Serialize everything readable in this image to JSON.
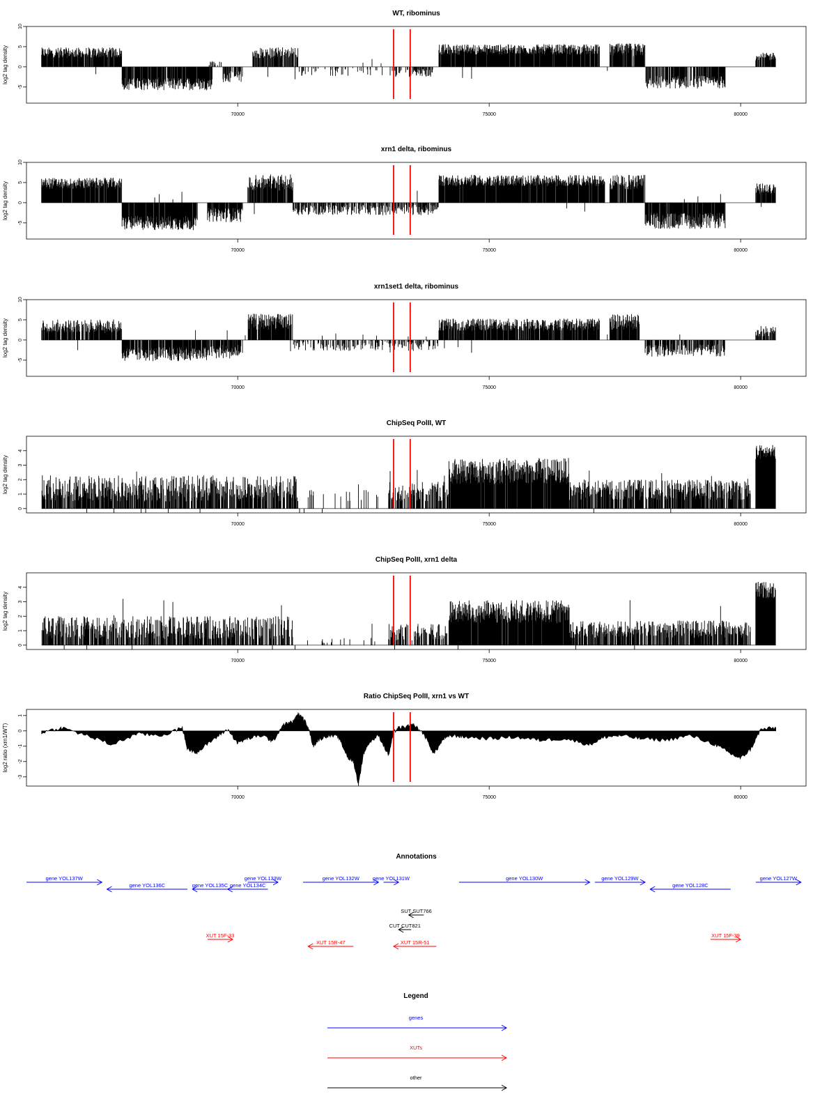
{
  "chart_data": [
    {
      "type": "bar",
      "title": "WT, ribominus",
      "ylabel": "log2 tag density",
      "xlim": [
        65800,
        81300
      ],
      "ylim": [
        -9,
        10
      ],
      "yticks": [
        10,
        5,
        0,
        -5
      ],
      "ytick_labels": [
        "10",
        "5",
        "0",
        "-5"
      ],
      "xticks": [
        70000,
        75000,
        80000
      ],
      "xtick_labels": [
        "70000",
        "75000",
        "80000"
      ],
      "marker_lines": [
        73100,
        73430
      ],
      "marker_color": "#ff0000",
      "segments": [
        {
          "x": [
            66100,
            67700
          ],
          "level": 3.5,
          "var": 1.3,
          "density": 0.9
        },
        {
          "x": [
            67700,
            69500
          ],
          "level": -4.2,
          "var": 1.6,
          "density": 0.9
        },
        {
          "x": [
            69400,
            69700
          ],
          "level": 1.0,
          "var": 0.8,
          "density": 0.3
        },
        {
          "x": [
            69700,
            70100
          ],
          "level": -2.5,
          "var": 1.4,
          "density": 0.7
        },
        {
          "x": [
            70300,
            71200
          ],
          "level": 3.5,
          "var": 1.4,
          "density": 0.7
        },
        {
          "x": [
            71200,
            73100
          ],
          "level": -1.3,
          "var": 1.0,
          "density": 0.15
        },
        {
          "x": [
            73100,
            73900
          ],
          "level": -1.5,
          "var": 1.0,
          "density": 0.4
        },
        {
          "x": [
            74000,
            77200
          ],
          "level": 4.3,
          "var": 1.3,
          "density": 0.95
        },
        {
          "x": [
            77400,
            78100
          ],
          "level": 4.2,
          "var": 1.6,
          "density": 0.85
        },
        {
          "x": [
            78100,
            79700
          ],
          "level": -3.8,
          "var": 1.6,
          "density": 0.8
        },
        {
          "x": [
            80300,
            80700
          ],
          "level": 2.5,
          "var": 1.0,
          "density": 0.8
        }
      ]
    },
    {
      "type": "bar",
      "title": "xrn1 delta, ribominus",
      "ylabel": "log2 tag density",
      "xlim": [
        65800,
        81300
      ],
      "ylim": [
        -9,
        10
      ],
      "yticks": [
        10,
        5,
        0,
        -5
      ],
      "ytick_labels": [
        "10",
        "5",
        "0",
        "-5"
      ],
      "xticks": [
        70000,
        75000,
        80000
      ],
      "xtick_labels": [
        "70000",
        "75000",
        "80000"
      ],
      "marker_lines": [
        73100,
        73430
      ],
      "marker_color": "#ff0000",
      "segments": [
        {
          "x": [
            66100,
            67700
          ],
          "level": 4.8,
          "var": 1.4,
          "density": 0.95
        },
        {
          "x": [
            67700,
            69200
          ],
          "level": -5.0,
          "var": 1.8,
          "density": 0.95
        },
        {
          "x": [
            69400,
            70100
          ],
          "level": -3.0,
          "var": 1.8,
          "density": 0.9
        },
        {
          "x": [
            70200,
            71100
          ],
          "level": 5.0,
          "var": 2.0,
          "density": 0.9
        },
        {
          "x": [
            71100,
            74000
          ],
          "level": -1.8,
          "var": 1.3,
          "density": 0.6
        },
        {
          "x": [
            74000,
            77300
          ],
          "level": 5.5,
          "var": 1.4,
          "density": 0.98
        },
        {
          "x": [
            77400,
            78100
          ],
          "level": 5.0,
          "var": 2.0,
          "density": 0.9
        },
        {
          "x": [
            78100,
            79700
          ],
          "level": -4.5,
          "var": 2.0,
          "density": 0.9
        },
        {
          "x": [
            80300,
            80700
          ],
          "level": 3.5,
          "var": 1.3,
          "density": 0.85
        }
      ]
    },
    {
      "type": "bar",
      "title": "xrn1set1 delta, ribominus",
      "ylabel": "log2 tag density",
      "xlim": [
        65800,
        81300
      ],
      "ylim": [
        -9,
        10
      ],
      "yticks": [
        10,
        5,
        0,
        -5
      ],
      "ytick_labels": [
        "10",
        "5",
        "0",
        "-5"
      ],
      "xticks": [
        70000,
        75000,
        80000
      ],
      "xtick_labels": [
        "70000",
        "75000",
        "80000"
      ],
      "marker_lines": [
        73100,
        73430
      ],
      "marker_color": "#ff0000",
      "segments": [
        {
          "x": [
            66100,
            67700
          ],
          "level": 3.5,
          "var": 1.6,
          "density": 0.8
        },
        {
          "x": [
            67700,
            69400
          ],
          "level": -3.5,
          "var": 1.8,
          "density": 0.85
        },
        {
          "x": [
            69400,
            70100
          ],
          "level": -2.8,
          "var": 1.8,
          "density": 0.8
        },
        {
          "x": [
            70200,
            71100
          ],
          "level": 4.5,
          "var": 2.0,
          "density": 0.85
        },
        {
          "x": [
            71100,
            74000
          ],
          "level": -1.2,
          "var": 1.5,
          "density": 0.5
        },
        {
          "x": [
            74000,
            77200
          ],
          "level": 3.8,
          "var": 1.5,
          "density": 0.9
        },
        {
          "x": [
            77400,
            78000
          ],
          "level": 4.5,
          "var": 2.0,
          "density": 0.85
        },
        {
          "x": [
            78100,
            79700
          ],
          "level": -2.5,
          "var": 1.6,
          "density": 0.7
        },
        {
          "x": [
            80300,
            80700
          ],
          "level": 2.2,
          "var": 1.3,
          "density": 0.7
        }
      ]
    },
    {
      "type": "bar",
      "title": "ChipSeq PolII, WT",
      "ylabel": "log2 tag density",
      "xlim": [
        65800,
        81300
      ],
      "ylim": [
        -0.3,
        5
      ],
      "yticks": [
        0,
        1,
        2,
        3,
        4
      ],
      "ytick_labels": [
        "0",
        "1",
        "2",
        "3",
        "4"
      ],
      "xticks": [
        70000,
        75000,
        80000
      ],
      "xtick_labels": [
        "70000",
        "75000",
        "80000"
      ],
      "marker_lines": [
        73100,
        73430
      ],
      "marker_color": "#ff0000",
      "segments": [
        {
          "x": [
            66100,
            71200
          ],
          "level": 1.4,
          "var": 0.9,
          "density": 0.75
        },
        {
          "x": [
            71200,
            73000
          ],
          "level": 0.9,
          "var": 0.4,
          "density": 0.1
        },
        {
          "x": [
            73000,
            74200
          ],
          "level": 1.2,
          "var": 0.7,
          "density": 0.6
        },
        {
          "x": [
            74200,
            76600
          ],
          "level": 2.6,
          "var": 0.9,
          "density": 0.95
        },
        {
          "x": [
            76600,
            80200
          ],
          "level": 1.3,
          "var": 0.7,
          "density": 0.75
        },
        {
          "x": [
            80300,
            80700
          ],
          "level": 3.9,
          "var": 0.5,
          "density": 1.0
        }
      ]
    },
    {
      "type": "bar",
      "title": "ChipSeq PolII, xrn1 delta",
      "ylabel": "log2 tag density",
      "xlim": [
        65800,
        81300
      ],
      "ylim": [
        -0.3,
        5
      ],
      "yticks": [
        0,
        1,
        2,
        3,
        4
      ],
      "ytick_labels": [
        "0",
        "1",
        "2",
        "3",
        "4"
      ],
      "xticks": [
        70000,
        75000,
        80000
      ],
      "xtick_labels": [
        "70000",
        "75000",
        "80000"
      ],
      "marker_lines": [
        73100,
        73430
      ],
      "marker_color": "#ff0000",
      "segments": [
        {
          "x": [
            66100,
            71100
          ],
          "level": 1.2,
          "var": 0.8,
          "density": 0.7
        },
        {
          "x": [
            71100,
            73000
          ],
          "level": 0.3,
          "var": 0.2,
          "density": 0.05
        },
        {
          "x": [
            73000,
            74200
          ],
          "level": 0.9,
          "var": 0.6,
          "density": 0.55
        },
        {
          "x": [
            74200,
            76600
          ],
          "level": 2.3,
          "var": 0.8,
          "density": 0.95
        },
        {
          "x": [
            76600,
            80200
          ],
          "level": 1.1,
          "var": 0.6,
          "density": 0.7
        },
        {
          "x": [
            80300,
            80700
          ],
          "level": 3.8,
          "var": 0.6,
          "density": 1.0
        }
      ]
    },
    {
      "type": "area",
      "title": "Ratio ChipSeq PolII, xrn1 vs WT",
      "ylabel": "log2 ratio (xrn1/WT)",
      "xlim": [
        65800,
        81300
      ],
      "ylim": [
        -3.6,
        1.4
      ],
      "yticks": [
        1,
        0,
        -1,
        -2,
        -3
      ],
      "ytick_labels": [
        "1",
        "0",
        "-1",
        "-2",
        "-3"
      ],
      "xticks": [
        70000,
        75000,
        80000
      ],
      "xtick_labels": [
        "70000",
        "75000",
        "80000"
      ],
      "marker_lines": [
        73100,
        73430
      ],
      "marker_color": "#ff0000",
      "x": [
        66100,
        66500,
        67000,
        67500,
        68000,
        68500,
        68900,
        69000,
        69200,
        69500,
        69800,
        70000,
        70200,
        70500,
        70700,
        70900,
        71100,
        71200,
        71300,
        71400,
        71500,
        71600,
        71800,
        72000,
        72200,
        72300,
        72400,
        72500,
        72600,
        72800,
        73000,
        73100,
        73200,
        73400,
        73500,
        73700,
        73900,
        74100,
        74300,
        74500,
        75000,
        75500,
        76000,
        76500,
        77000,
        77300,
        77600,
        78000,
        78500,
        79000,
        79500,
        79800,
        80000,
        80200,
        80400,
        80700
      ],
      "y": [
        -0.1,
        0.2,
        -0.3,
        -0.9,
        -0.2,
        -0.3,
        0.2,
        -1.2,
        -1.4,
        -0.6,
        0.1,
        -0.8,
        -0.5,
        -0.3,
        -0.7,
        0.4,
        0.6,
        1.1,
        0.8,
        0.3,
        -1.0,
        -0.6,
        -0.3,
        -0.4,
        -1.8,
        -2.0,
        -3.5,
        -1.5,
        -0.8,
        -0.3,
        -1.6,
        -0.1,
        0.2,
        0.3,
        0.4,
        -0.2,
        -1.5,
        -0.5,
        -0.3,
        -0.4,
        -0.5,
        -0.4,
        -0.6,
        -0.5,
        -0.9,
        -0.4,
        -0.3,
        -0.5,
        -0.6,
        -0.3,
        -0.9,
        -1.5,
        -1.8,
        -1.2,
        0.1,
        0.2
      ]
    }
  ],
  "annotations": {
    "title": "Annotations",
    "xlim": [
      65800,
      81300
    ],
    "colors": {
      "gene": "#0000ff",
      "xut": "#ff0000",
      "other": "#000000"
    },
    "features": [
      {
        "label": "gene YOL137W",
        "x1": 65800,
        "x2": 67300,
        "strand": "+",
        "row": 0,
        "kind": "gene"
      },
      {
        "label": "gene YOL136C",
        "x1": 67400,
        "x2": 69000,
        "strand": "-",
        "row": 1,
        "kind": "gene"
      },
      {
        "label": "gene YOL135C",
        "x1": 69100,
        "x2": 69800,
        "strand": "-",
        "row": 1,
        "kind": "gene"
      },
      {
        "label": "gene YOL134C",
        "x1": 69800,
        "x2": 70600,
        "strand": "-",
        "row": 1,
        "kind": "gene"
      },
      {
        "label": "gene YOL133W",
        "x1": 70200,
        "x2": 70800,
        "strand": "+",
        "row": 0,
        "kind": "gene"
      },
      {
        "label": "gene YOL132W",
        "x1": 71300,
        "x2": 72800,
        "strand": "+",
        "row": 0,
        "kind": "gene"
      },
      {
        "label": "gene YOL131W",
        "x1": 72900,
        "x2": 73200,
        "strand": "+",
        "row": 0,
        "kind": "gene"
      },
      {
        "label": "gene YOL130W",
        "x1": 74400,
        "x2": 77000,
        "strand": "+",
        "row": 0,
        "kind": "gene"
      },
      {
        "label": "gene YOL129W",
        "x1": 77100,
        "x2": 78100,
        "strand": "+",
        "row": 0,
        "kind": "gene"
      },
      {
        "label": "gene YOL128C",
        "x1": 78200,
        "x2": 79800,
        "strand": "-",
        "row": 1,
        "kind": "gene"
      },
      {
        "label": "gene YOL127W",
        "x1": 80300,
        "x2": 81200,
        "strand": "+",
        "row": 0,
        "kind": "gene"
      },
      {
        "label": "SUT SUT766",
        "x1": 73400,
        "x2": 73700,
        "strand": "-",
        "row": 2,
        "kind": "other"
      },
      {
        "label": "CUT CUT821",
        "x1": 73200,
        "x2": 73450,
        "strand": "-",
        "row": 3,
        "kind": "other"
      },
      {
        "label": "XUT 15F-33",
        "x1": 69400,
        "x2": 69900,
        "strand": "+",
        "row": 4,
        "kind": "xut"
      },
      {
        "label": "XUT 15R-47",
        "x1": 71400,
        "x2": 72300,
        "strand": "-",
        "row": 5,
        "kind": "xut"
      },
      {
        "label": "XUT 15R-51",
        "x1": 73100,
        "x2": 73950,
        "strand": "-",
        "row": 5,
        "kind": "xut"
      },
      {
        "label": "XUT 15F-39",
        "x1": 79400,
        "x2": 80000,
        "strand": "+",
        "row": 4,
        "kind": "xut"
      }
    ]
  },
  "legend": {
    "title": "Legend",
    "items": [
      {
        "label": "genes",
        "color": "#0000ff"
      },
      {
        "label": "XUTs",
        "color": "#ff0000"
      },
      {
        "label": "other",
        "color": "#000000"
      }
    ]
  }
}
